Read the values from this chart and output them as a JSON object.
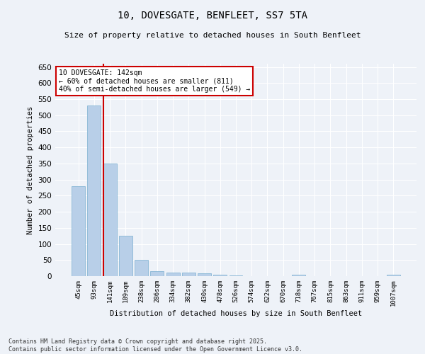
{
  "title1": "10, DOVESGATE, BENFLEET, SS7 5TA",
  "title2": "Size of property relative to detached houses in South Benfleet",
  "xlabel": "Distribution of detached houses by size in South Benfleet",
  "ylabel": "Number of detached properties",
  "categories": [
    "45sqm",
    "93sqm",
    "141sqm",
    "189sqm",
    "238sqm",
    "286sqm",
    "334sqm",
    "382sqm",
    "430sqm",
    "478sqm",
    "526sqm",
    "574sqm",
    "622sqm",
    "670sqm",
    "718sqm",
    "767sqm",
    "815sqm",
    "863sqm",
    "911sqm",
    "959sqm",
    "1007sqm"
  ],
  "values": [
    280,
    530,
    350,
    125,
    50,
    15,
    10,
    10,
    8,
    5,
    2,
    0,
    0,
    0,
    5,
    0,
    0,
    0,
    0,
    0,
    4
  ],
  "bar_color": "#b8cfe8",
  "bar_edge_color": "#7aaed0",
  "vline_color": "#cc0000",
  "annotation_text": "10 DOVESGATE: 142sqm\n← 60% of detached houses are smaller (811)\n40% of semi-detached houses are larger (549) →",
  "annotation_box_color": "#cc0000",
  "ylim": [
    0,
    660
  ],
  "yticks": [
    0,
    50,
    100,
    150,
    200,
    250,
    300,
    350,
    400,
    450,
    500,
    550,
    600,
    650
  ],
  "footer_text": "Contains HM Land Registry data © Crown copyright and database right 2025.\nContains public sector information licensed under the Open Government Licence v3.0.",
  "background_color": "#eef2f8",
  "plot_bg_color": "#eef2f8",
  "grid_color": "#ffffff"
}
